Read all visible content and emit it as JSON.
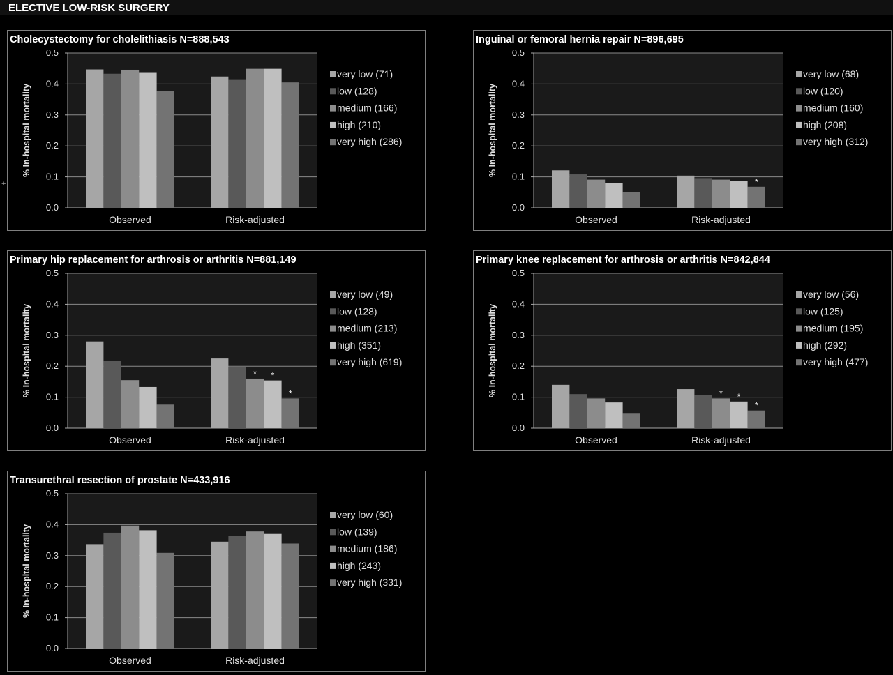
{
  "header": {
    "title": "ELECTIVE LOW-RISK SURGERY"
  },
  "plus_mark": "+",
  "colors": {
    "very_low": "#a6a6a6",
    "low": "#595959",
    "medium": "#8c8c8c",
    "high": "#bfbfbf",
    "very_high": "#737373",
    "plot_bg": "#1a1a1a",
    "text": "#e0e0e0"
  },
  "chart_data": [
    {
      "type": "bar",
      "title": "Cholecystectomy for cholelithiasis N=888,543",
      "ylabel": "% In-hospital mortality",
      "ylim": [
        0,
        0.5
      ],
      "yticks": [
        "0.0",
        "0.1",
        "0.2",
        "0.3",
        "0.4",
        "0.5"
      ],
      "grid": true,
      "legend": "right",
      "categories": [
        "Observed",
        "Risk-adjusted"
      ],
      "series": [
        {
          "name": "very low (71)",
          "values": [
            0.447,
            0.424
          ],
          "marks": [
            "",
            ""
          ]
        },
        {
          "name": "low (128)",
          "values": [
            0.433,
            0.413
          ],
          "marks": [
            "",
            ""
          ]
        },
        {
          "name": "medium (166)",
          "values": [
            0.446,
            0.449
          ],
          "marks": [
            "",
            ""
          ]
        },
        {
          "name": "high (210)",
          "values": [
            0.438,
            0.449
          ],
          "marks": [
            "",
            ""
          ]
        },
        {
          "name": "very high (286)",
          "values": [
            0.377,
            0.405
          ],
          "marks": [
            "",
            ""
          ]
        }
      ]
    },
    {
      "type": "bar",
      "title": "Inguinal or femoral hernia repair N=896,695",
      "ylabel": "% In-hospital mortality",
      "ylim": [
        0,
        0.5
      ],
      "yticks": [
        "0.0",
        "0.1",
        "0.2",
        "0.3",
        "0.4",
        "0.5"
      ],
      "grid": true,
      "legend": "right",
      "categories": [
        "Observed",
        "Risk-adjusted"
      ],
      "series": [
        {
          "name": "very low (68)",
          "values": [
            0.121,
            0.104
          ],
          "marks": [
            "",
            ""
          ]
        },
        {
          "name": "low (120)",
          "values": [
            0.108,
            0.096
          ],
          "marks": [
            "",
            ""
          ]
        },
        {
          "name": "medium (160)",
          "values": [
            0.091,
            0.091
          ],
          "marks": [
            "",
            ""
          ]
        },
        {
          "name": "high (208)",
          "values": [
            0.081,
            0.086
          ],
          "marks": [
            "",
            ""
          ]
        },
        {
          "name": "very high (312)",
          "values": [
            0.051,
            0.068
          ],
          "marks": [
            "",
            "*"
          ]
        }
      ]
    },
    {
      "type": "bar",
      "title": "Primary hip replacement for arthrosis or arthritis N=881,149",
      "ylabel": "% In-hospital mortality",
      "ylim": [
        0,
        0.5
      ],
      "yticks": [
        "0.0",
        "0.1",
        "0.2",
        "0.3",
        "0.4",
        "0.5"
      ],
      "grid": true,
      "legend": "right",
      "categories": [
        "Observed",
        "Risk-adjusted"
      ],
      "series": [
        {
          "name": "very low (49)",
          "values": [
            0.28,
            0.225
          ],
          "marks": [
            "",
            ""
          ]
        },
        {
          "name": "low (128)",
          "values": [
            0.218,
            0.196
          ],
          "marks": [
            "",
            ""
          ]
        },
        {
          "name": "medium (213)",
          "values": [
            0.155,
            0.16
          ],
          "marks": [
            "",
            "*"
          ]
        },
        {
          "name": "high (351)",
          "values": [
            0.133,
            0.154
          ],
          "marks": [
            "",
            "*"
          ]
        },
        {
          "name": "very high (619)",
          "values": [
            0.076,
            0.096
          ],
          "marks": [
            "",
            "*"
          ]
        }
      ]
    },
    {
      "type": "bar",
      "title": "Primary knee replacement for arthrosis or arthritis N=842,844",
      "ylabel": "% In-hospital mortality",
      "ylim": [
        0,
        0.5
      ],
      "yticks": [
        "0.0",
        "0.1",
        "0.2",
        "0.3",
        "0.4",
        "0.5"
      ],
      "grid": true,
      "legend": "right",
      "categories": [
        "Observed",
        "Risk-adjusted"
      ],
      "series": [
        {
          "name": "very low (56)",
          "values": [
            0.14,
            0.126
          ],
          "marks": [
            "",
            ""
          ]
        },
        {
          "name": "low (125)",
          "values": [
            0.11,
            0.106
          ],
          "marks": [
            "",
            ""
          ]
        },
        {
          "name": "medium (195)",
          "values": [
            0.096,
            0.096
          ],
          "marks": [
            "",
            "*"
          ]
        },
        {
          "name": "high (292)",
          "values": [
            0.083,
            0.086
          ],
          "marks": [
            "",
            "*"
          ]
        },
        {
          "name": "very high (477)",
          "values": [
            0.049,
            0.057
          ],
          "marks": [
            "",
            "*"
          ]
        }
      ]
    },
    {
      "type": "bar",
      "title": "Transurethral resection of prostate N=433,916",
      "ylabel": "% In-hospital mortality",
      "ylim": [
        0,
        0.5
      ],
      "yticks": [
        "0.0",
        "0.1",
        "0.2",
        "0.3",
        "0.4",
        "0.5"
      ],
      "grid": true,
      "legend": "right",
      "categories": [
        "Observed",
        "Risk-adjusted"
      ],
      "series": [
        {
          "name": "very low (60)",
          "values": [
            0.337,
            0.345
          ],
          "marks": [
            "",
            ""
          ]
        },
        {
          "name": "low (139)",
          "values": [
            0.374,
            0.364
          ],
          "marks": [
            "",
            ""
          ]
        },
        {
          "name": "medium (186)",
          "values": [
            0.397,
            0.378
          ],
          "marks": [
            "",
            ""
          ]
        },
        {
          "name": "high (243)",
          "values": [
            0.382,
            0.37
          ],
          "marks": [
            "",
            ""
          ]
        },
        {
          "name": "very high (331)",
          "values": [
            0.309,
            0.339
          ],
          "marks": [
            "",
            ""
          ]
        }
      ]
    }
  ]
}
